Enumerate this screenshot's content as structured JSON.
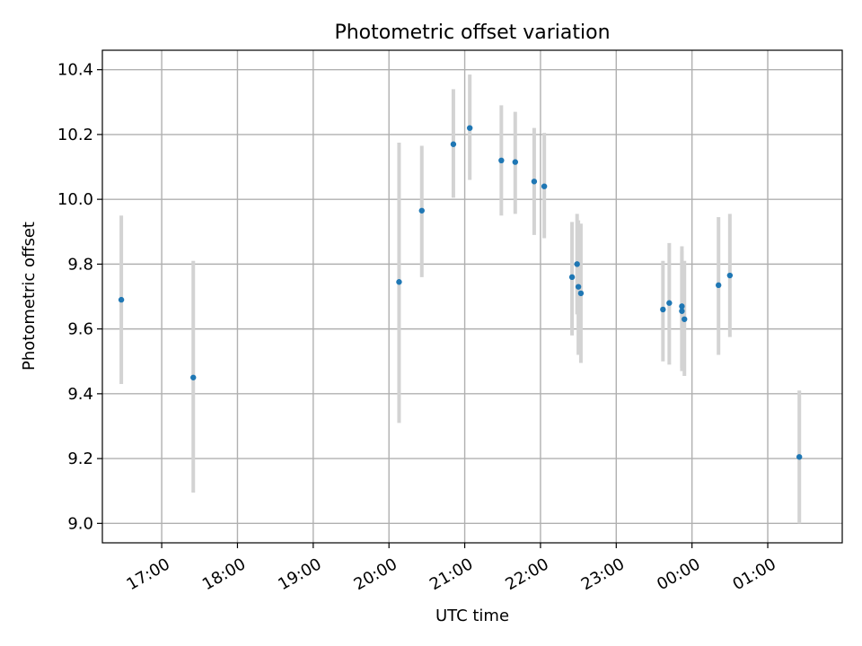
{
  "chart_data": {
    "type": "scatter",
    "title": "Photometric offset variation",
    "xlabel": "UTC time",
    "ylabel": "Photometric offset",
    "x_axis": {
      "kind": "time",
      "range": [
        "16:13",
        "01:59"
      ],
      "ticks": [
        "17:00",
        "18:00",
        "19:00",
        "20:00",
        "21:00",
        "22:00",
        "23:00",
        "00:00",
        "01:00"
      ]
    },
    "y_axis": {
      "range": [
        8.94,
        10.46
      ],
      "ticks": [
        9.0,
        9.2,
        9.4,
        9.6,
        9.8,
        10.0,
        10.2,
        10.4
      ],
      "tick_labels": [
        "9.0",
        "9.2",
        "9.4",
        "9.6",
        "9.8",
        "10.0",
        "10.2",
        "10.4"
      ]
    },
    "grid": true,
    "colors": {
      "point": "#1f77b4",
      "errorbar": "#d3d3d3",
      "grid": "#b0b0b0"
    },
    "points": [
      {
        "x": "16:28",
        "y": 9.69,
        "ylow": 9.43,
        "yhigh": 9.95
      },
      {
        "x": "17:25",
        "y": 9.45,
        "ylow": 9.095,
        "yhigh": 9.81
      },
      {
        "x": "20:08",
        "y": 9.745,
        "ylow": 9.31,
        "yhigh": 10.175
      },
      {
        "x": "20:26",
        "y": 9.965,
        "ylow": 9.76,
        "yhigh": 10.165
      },
      {
        "x": "20:51",
        "y": 10.17,
        "ylow": 10.005,
        "yhigh": 10.34
      },
      {
        "x": "21:04",
        "y": 10.22,
        "ylow": 10.06,
        "yhigh": 10.385
      },
      {
        "x": "21:29",
        "y": 10.12,
        "ylow": 9.95,
        "yhigh": 10.29
      },
      {
        "x": "21:40",
        "y": 10.115,
        "ylow": 9.955,
        "yhigh": 10.27
      },
      {
        "x": "21:55",
        "y": 10.055,
        "ylow": 9.89,
        "yhigh": 10.22
      },
      {
        "x": "22:03",
        "y": 10.04,
        "ylow": 9.88,
        "yhigh": 10.205
      },
      {
        "x": "22:25",
        "y": 9.76,
        "ylow": 9.58,
        "yhigh": 9.93
      },
      {
        "x": "22:29",
        "y": 9.8,
        "ylow": 9.645,
        "yhigh": 9.955
      },
      {
        "x": "22:30",
        "y": 9.73,
        "ylow": 9.52,
        "yhigh": 9.935
      },
      {
        "x": "22:32",
        "y": 9.71,
        "ylow": 9.495,
        "yhigh": 9.925
      },
      {
        "x": "23:37",
        "y": 9.66,
        "ylow": 9.5,
        "yhigh": 9.81
      },
      {
        "x": "23:42",
        "y": 9.68,
        "ylow": 9.49,
        "yhigh": 9.865
      },
      {
        "x": "23:52",
        "y": 9.67,
        "ylow": 9.48,
        "yhigh": 9.855
      },
      {
        "x": "23:52",
        "y": 9.655,
        "ylow": 9.47,
        "yhigh": 9.84
      },
      {
        "x": "23:54",
        "y": 9.63,
        "ylow": 9.455,
        "yhigh": 9.81
      },
      {
        "x": "00:21",
        "y": 9.735,
        "ylow": 9.52,
        "yhigh": 9.945
      },
      {
        "x": "00:30",
        "y": 9.765,
        "ylow": 9.575,
        "yhigh": 9.955
      },
      {
        "x": "01:25",
        "y": 9.205,
        "ylow": 9.0,
        "yhigh": 9.41
      }
    ]
  }
}
